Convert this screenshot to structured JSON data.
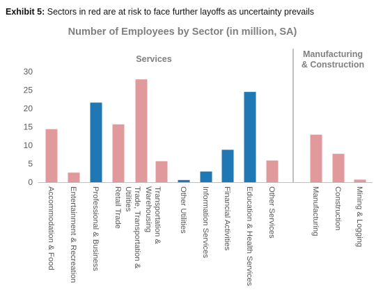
{
  "exhibit": {
    "label": "Exhibit 5:",
    "text": "Sectors in red are at risk to face further layoffs as uncertainty prevails"
  },
  "colors": {
    "at_risk": "#E19A9C",
    "other": "#1F77B4",
    "divider": "#7F7F7F",
    "text": "#595959"
  },
  "chart_data": {
    "type": "bar",
    "title": "Number of Employees by Sector (in million, SA)",
    "ylim": [
      0,
      30
    ],
    "yticks": [
      0,
      5,
      10,
      15,
      20,
      25,
      30
    ],
    "grid": false,
    "groups": [
      {
        "label": "Services",
        "categories": 11
      },
      {
        "label": "Manufacturing\n& Construction",
        "categories": 3
      }
    ],
    "categories": [
      "Accommodation & Food",
      "Entertainment & Recreation",
      "Professional & Business",
      "Retail Trade",
      "Trade, Transportation & Utilities",
      "Transportation & Warehousing",
      "Other Utilities",
      "Information Services",
      "Financial Activities",
      "Education & Health Services",
      "Other Services",
      "Manufacturing",
      "Construction",
      "Mining & Logging"
    ],
    "values": [
      14.4,
      2.6,
      21.6,
      15.7,
      27.9,
      5.7,
      0.6,
      2.9,
      8.8,
      24.5,
      5.9,
      12.9,
      7.7,
      0.7
    ],
    "at_risk": [
      true,
      true,
      false,
      true,
      true,
      true,
      false,
      false,
      false,
      false,
      true,
      true,
      true,
      true
    ]
  }
}
